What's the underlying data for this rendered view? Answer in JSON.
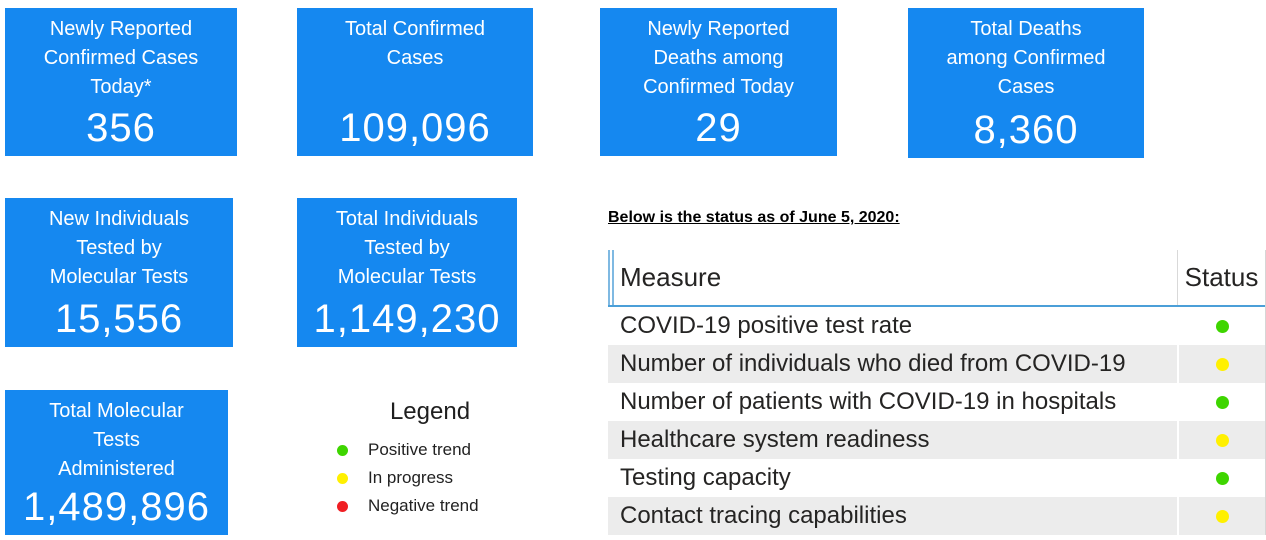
{
  "colors": {
    "card_blue": "#1588F0",
    "green": "#3ED500",
    "yellow": "#FFF000",
    "red": "#F01E23",
    "table_alt_row": "#ECECEC",
    "header_border_blue": "#4B9FD8"
  },
  "cards": [
    {
      "title": "Newly Reported\nConfirmed Cases\nToday*",
      "value": "356"
    },
    {
      "title": "Total Confirmed\nCases",
      "value": "109,096"
    },
    {
      "title": "Newly Reported\nDeaths among\nConfirmed Today",
      "value": "29"
    },
    {
      "title": "Total Deaths\namong Confirmed\nCases",
      "value": "8,360"
    },
    {
      "title": "New Individuals\nTested by\nMolecular Tests",
      "value": "15,556"
    },
    {
      "title": "Total Individuals\nTested by\nMolecular Tests",
      "value": "1,149,230"
    },
    {
      "title": "Total Molecular\nTests\nAdministered",
      "value": "1,489,896"
    }
  ],
  "legend": {
    "title": "Legend",
    "items": [
      {
        "label": "Positive trend",
        "color": "#3ED500"
      },
      {
        "label": "In progress",
        "color": "#FFF000"
      },
      {
        "label": "Negative trend",
        "color": "#F01E23"
      }
    ]
  },
  "status_section": {
    "intro": "Below is the status as of June 5, 2020:",
    "columns": [
      "Measure",
      "Status"
    ],
    "rows": [
      {
        "measure": "COVID-19 positive test rate",
        "status": "green",
        "status_color": "#3ED500"
      },
      {
        "measure": "Number of individuals who died from COVID-19",
        "status": "yellow",
        "status_color": "#FFF000"
      },
      {
        "measure": "Number of patients with COVID-19 in hospitals",
        "status": "green",
        "status_color": "#3ED500"
      },
      {
        "measure": "Healthcare system readiness",
        "status": "yellow",
        "status_color": "#FFF000"
      },
      {
        "measure": "Testing capacity",
        "status": "green",
        "status_color": "#3ED500"
      },
      {
        "measure": "Contact tracing capabilities",
        "status": "yellow",
        "status_color": "#FFF000"
      }
    ]
  }
}
